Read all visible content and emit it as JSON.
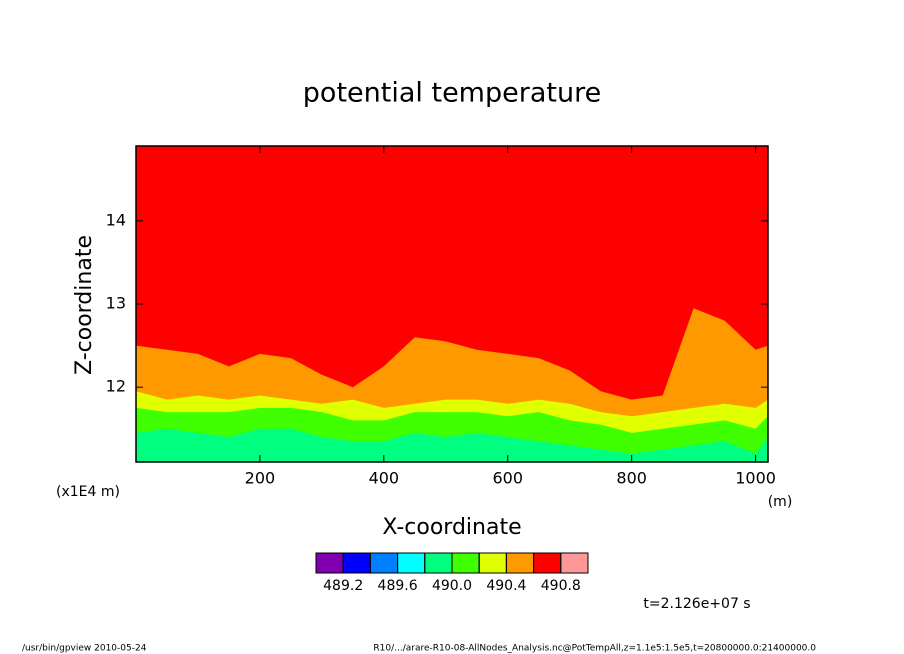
{
  "chart_data": {
    "type": "contour",
    "title": "potential temperature",
    "xlabel": "X-coordinate",
    "ylabel": "Z-coordinate",
    "xunit": "(m)",
    "yunit": "(x1E4 m)",
    "xlim": [
      0,
      1020
    ],
    "xticks": [
      200,
      400,
      600,
      800,
      1000
    ],
    "ylim": [
      11.1,
      14.9
    ],
    "yticks": [
      12,
      13,
      14
    ],
    "background": "#ff0000",
    "x": [
      0,
      50,
      100,
      150,
      200,
      250,
      300,
      350,
      400,
      450,
      500,
      550,
      600,
      650,
      700,
      750,
      800,
      850,
      900,
      950,
      1000,
      1020
    ],
    "bands": [
      {
        "color": "#ff9900",
        "top": [
          12.5,
          12.45,
          12.4,
          12.25,
          12.4,
          12.35,
          12.15,
          12.0,
          12.25,
          12.6,
          12.55,
          12.45,
          12.4,
          12.35,
          12.2,
          11.95,
          11.85,
          11.9,
          12.95,
          12.8,
          12.45,
          12.5
        ]
      },
      {
        "color": "#e0ff00",
        "top": [
          11.95,
          11.85,
          11.9,
          11.85,
          11.9,
          11.85,
          11.8,
          11.85,
          11.75,
          11.8,
          11.85,
          11.85,
          11.8,
          11.85,
          11.8,
          11.7,
          11.65,
          11.7,
          11.75,
          11.8,
          11.75,
          11.85
        ]
      },
      {
        "color": "#40ff00",
        "top": [
          11.75,
          11.7,
          11.7,
          11.7,
          11.75,
          11.75,
          11.7,
          11.6,
          11.6,
          11.7,
          11.7,
          11.7,
          11.65,
          11.7,
          11.6,
          11.55,
          11.45,
          11.5,
          11.55,
          11.6,
          11.5,
          11.65
        ]
      },
      {
        "color": "#00ff80",
        "top": [
          11.45,
          11.5,
          11.45,
          11.4,
          11.5,
          11.5,
          11.4,
          11.35,
          11.35,
          11.45,
          11.4,
          11.45,
          11.4,
          11.35,
          11.3,
          11.25,
          11.2,
          11.25,
          11.3,
          11.35,
          11.2,
          11.4
        ]
      }
    ],
    "colorbar_colors": [
      "#8000b0",
      "#0000ff",
      "#0080ff",
      "#00ffff",
      "#00ff80",
      "#40ff00",
      "#e0ff00",
      "#ff9900",
      "#ff0000",
      "#ff9999"
    ],
    "levels": [
      489.2,
      489.4,
      489.6,
      489.8,
      490,
      490.2,
      490.4,
      490.6,
      490.8
    ],
    "colorbar_ticks": [
      489.2,
      489.6,
      {
        "value": 490,
        "label": "490.0"
      },
      490.4,
      490.8
    ],
    "time_label": "t=2.126e+07 s",
    "footer_left": "/usr/bin/gpview   2010-05-24",
    "footer_right": "R10/.../arare-R10-08-AllNodes_Analysis.nc@PotTempAll,z=1.1e5:1.5e5,t=20800000.0:21400000.0"
  }
}
